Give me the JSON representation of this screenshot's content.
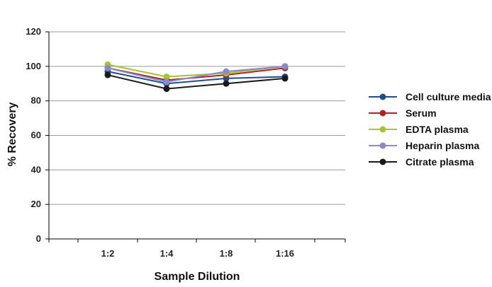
{
  "chart_data": {
    "type": "line",
    "title": "",
    "xlabel": "Sample Dilution",
    "ylabel": "% Recovery",
    "categories": [
      "1:2",
      "1:4",
      "1:8",
      "1:16"
    ],
    "ylim": [
      0,
      120
    ],
    "yticks": [
      0,
      20,
      40,
      60,
      80,
      100,
      120
    ],
    "grid": "horizontal",
    "legend_position": "right",
    "series": [
      {
        "name": "Cell culture media",
        "color": "#1f4e8c",
        "values": [
          97,
          90,
          93,
          94
        ]
      },
      {
        "name": "Serum",
        "color": "#b22222",
        "values": [
          99,
          92,
          95,
          99
        ]
      },
      {
        "name": "EDTA plasma",
        "color": "#a8c230",
        "values": [
          101,
          94,
          96,
          100
        ]
      },
      {
        "name": "Heparin plasma",
        "color": "#8888cc",
        "values": [
          99,
          91,
          97,
          100
        ]
      },
      {
        "name": "Citrate plasma",
        "color": "#1a1a1a",
        "values": [
          95,
          87,
          90,
          93
        ]
      }
    ]
  }
}
